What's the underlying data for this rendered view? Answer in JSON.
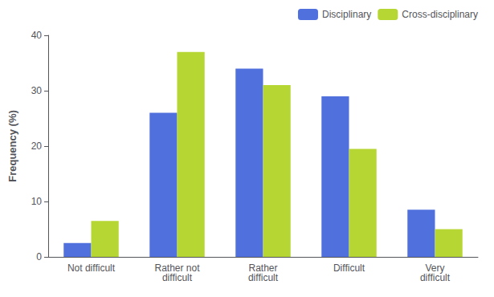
{
  "chart_data": {
    "type": "bar",
    "categories": [
      "Not difficult",
      "Rather not\ndifficult",
      "Rather\ndifficult",
      "Difficult",
      "Very\ndifficult"
    ],
    "series": [
      {
        "name": "Disciplinary",
        "values": [
          2.5,
          26.0,
          34.0,
          29.0,
          8.5
        ]
      },
      {
        "name": "Cross-disciplinary",
        "values": [
          6.5,
          37.0,
          31.0,
          19.5,
          5.0
        ]
      }
    ],
    "ylabel": "Frequency (%)",
    "ylim": [
      0,
      40
    ],
    "yticks": [
      0,
      10,
      20,
      30,
      40
    ],
    "grid": false,
    "legend": "upper right"
  }
}
